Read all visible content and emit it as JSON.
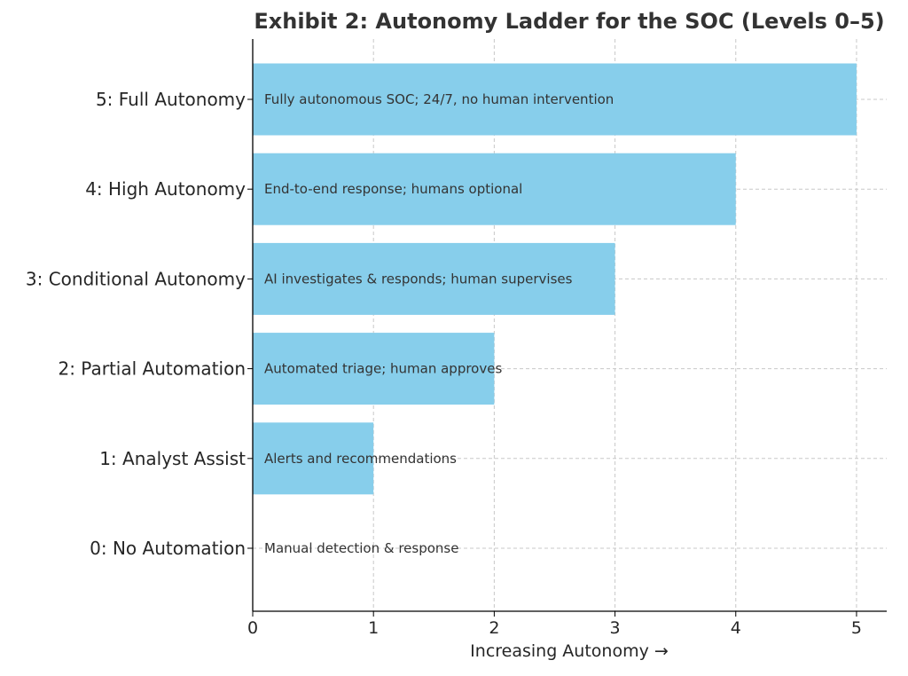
{
  "chart_data": {
    "type": "bar",
    "orientation": "horizontal",
    "title": "Exhibit 2: Autonomy Ladder for the SOC (Levels 0–5)",
    "xlabel": "Increasing Autonomy →",
    "ylabel": "",
    "xlim": [
      0,
      5.25
    ],
    "xticks": [
      "0",
      "1",
      "2",
      "3",
      "4",
      "5"
    ],
    "grid": true,
    "bar_color": "#87CEEB",
    "categories": [
      "0: No Automation",
      "1: Analyst Assist",
      "2: Partial Automation",
      "3: Conditional Autonomy",
      "4: High Autonomy",
      "5: Full Autonomy"
    ],
    "values": [
      0,
      1,
      2,
      3,
      4,
      5
    ],
    "annotations": [
      "Manual detection & response",
      "Alerts and recommendations",
      "Automated triage; human approves",
      "AI investigates & responds; human supervises",
      "End-to-end response; humans optional",
      "Fully autonomous SOC; 24/7, no human intervention"
    ]
  }
}
